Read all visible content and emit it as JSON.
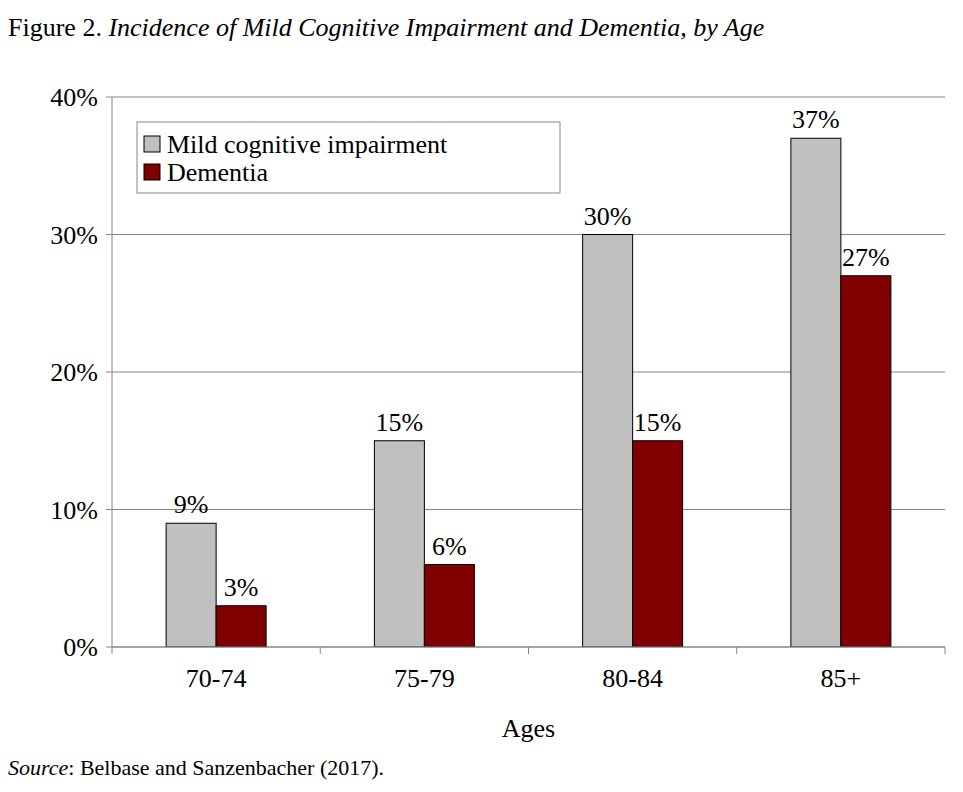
{
  "chart_data": {
    "type": "bar",
    "title": "Figure 2. Incidence of Mild Cognitive Impairment and Dementia, by Age",
    "x_label": "Ages",
    "annotations": [
      "Source: Belbase and Sanzenbacher (2017)."
    ],
    "categories": [
      "70-74",
      "75-79",
      "80-84",
      "85+"
    ],
    "series": [
      {
        "name": "Mild cognitive impairment",
        "color": "#c0c0c0",
        "values": [
          9,
          15,
          30,
          37
        ],
        "value_labels": [
          "9%",
          "15%",
          "30%",
          "37%"
        ]
      },
      {
        "name": "Dementia",
        "color": "#800000",
        "values": [
          3,
          6,
          15,
          27
        ],
        "value_labels": [
          "3%",
          "6%",
          "15%",
          "27%"
        ]
      }
    ],
    "ylim": [
      0,
      40
    ],
    "yticks": [
      {
        "value": 0,
        "label": "0%"
      },
      {
        "value": 10,
        "label": "10%"
      },
      {
        "value": 20,
        "label": "20%"
      },
      {
        "value": 30,
        "label": "30%"
      },
      {
        "value": 40,
        "label": "40%"
      }
    ],
    "grid": true,
    "legend": "top-left",
    "data_labels": true
  }
}
